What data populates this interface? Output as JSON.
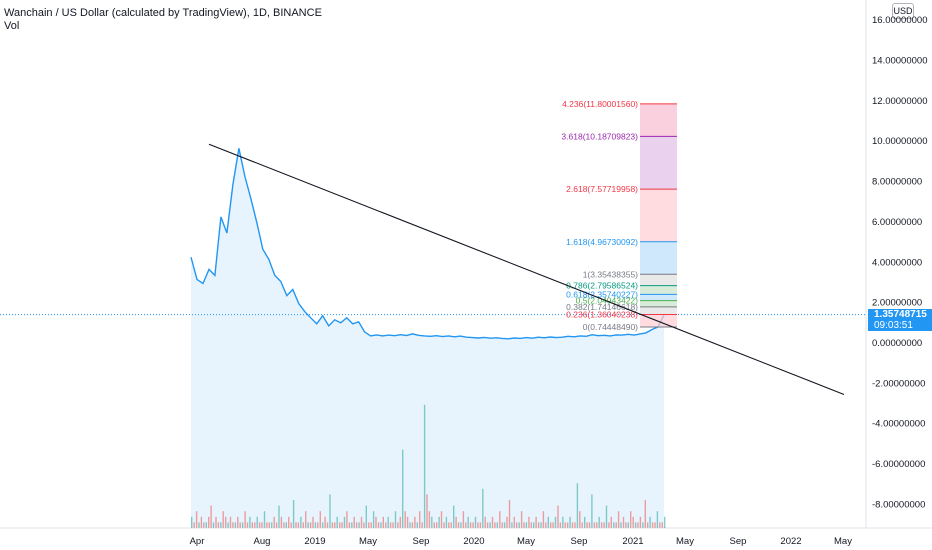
{
  "header": {
    "title": "Wanchain / US Dollar (calculated by TradingView), 1D, BINANCE",
    "vol_label": "Vol"
  },
  "currency_badge": "USD",
  "price_tag": {
    "price": "1.35748715",
    "countdown": "09:03:51"
  },
  "colors": {
    "line": "#2196f3",
    "area_fill": "#e3f2fd",
    "trendline": "#131722",
    "vol_up": "#26a69a",
    "vol_down": "#ef5350"
  },
  "chart_data": {
    "type": "line",
    "ylim": [
      -9.0,
      16.5
    ],
    "yticks": [
      "16.00000000",
      "14.00000000",
      "12.00000000",
      "10.00000000",
      "8.00000000",
      "6.00000000",
      "4.00000000",
      "2.00000000",
      "0.00000000",
      "-2.00000000",
      "-4.00000000",
      "-6.00000000",
      "-8.00000000"
    ],
    "ytick_values": [
      16,
      14,
      12,
      10,
      8,
      6,
      4,
      2,
      0,
      -2,
      -4,
      -6,
      -8
    ],
    "xticks": [
      "Apr",
      "Aug",
      "2019",
      "May",
      "Sep",
      "2020",
      "May",
      "Sep",
      "2021",
      "May",
      "Sep",
      "2022",
      "May"
    ],
    "series": [
      {
        "values": [
          4.2,
          3.1,
          2.9,
          3.6,
          3.3,
          6.2,
          5.4,
          7.8,
          9.6,
          8.2,
          7.1,
          5.9,
          4.6,
          4.1,
          3.3,
          3.0,
          2.3,
          2.6,
          1.9,
          1.5,
          1.2,
          0.9,
          1.3,
          0.8,
          1.1,
          0.95,
          1.2,
          0.9,
          1.0,
          0.5,
          0.3,
          0.35,
          0.3,
          0.34,
          0.31,
          0.36,
          0.32,
          0.4,
          0.33,
          0.3,
          0.28,
          0.31,
          0.27,
          0.3,
          0.26,
          0.29,
          0.24,
          0.22,
          0.2,
          0.23,
          0.19,
          0.21,
          0.18,
          0.16,
          0.2,
          0.18,
          0.22,
          0.19,
          0.24,
          0.21,
          0.25,
          0.22,
          0.24,
          0.28,
          0.26,
          0.3,
          0.28,
          0.36,
          0.31,
          0.33,
          0.3,
          0.35,
          0.34,
          0.38,
          0.34,
          0.4,
          0.45,
          0.62,
          0.75,
          1.35
        ]
      }
    ],
    "trendline": {
      "start": [
        0.0,
        9.8
      ],
      "end": [
        1.0,
        -2.6
      ]
    },
    "fibonacci": [
      {
        "level": "4.236(11.80001560)",
        "value": 11.8000156,
        "color": "#f23645"
      },
      {
        "level": "3.618(10.18709823)",
        "value": 10.18709823,
        "color": "#9c27b0"
      },
      {
        "level": "2.618(7.57719958)",
        "value": 7.57719958,
        "color": "#f23645"
      },
      {
        "level": "1.618(4.96730092)",
        "value": 4.96730092,
        "color": "#2196f3"
      },
      {
        "level": "1(3.35438355)",
        "value": 3.35438355,
        "color": "#787b86"
      },
      {
        "level": "0.786(2.79586524)",
        "value": 2.79586524,
        "color": "#089981"
      },
      {
        "level": "0.618(2.35740227)",
        "value": 2.35740227,
        "color": "#2196f3"
      },
      {
        "level": "0.5(2.04943422)",
        "value": 2.04943422,
        "color": "#4caf50"
      },
      {
        "level": "0.382(1.74146618)",
        "value": 1.74146618,
        "color": "#787b86"
      },
      {
        "level": "0.236(1.36040238)",
        "value": 1.36040238,
        "color": "#f23645"
      },
      {
        "level": "0(0.74448490)",
        "value": 0.7444849,
        "color": "#787b86"
      }
    ],
    "volume": [
      2,
      1,
      3,
      1,
      2,
      1,
      1,
      2,
      4,
      1,
      2,
      1,
      1,
      3,
      2,
      1,
      2,
      1,
      1,
      2,
      1,
      1,
      3,
      1,
      2,
      1,
      1,
      2,
      1,
      1,
      3,
      1,
      1,
      1,
      2,
      1,
      4,
      2,
      1,
      1,
      2,
      1,
      5,
      1,
      1,
      2,
      1,
      3,
      1,
      1,
      2,
      1,
      1,
      3,
      1,
      2,
      1,
      6,
      1,
      1,
      2,
      1,
      1,
      2,
      3,
      1,
      1,
      2,
      1,
      1,
      2,
      1,
      4,
      1,
      1,
      3,
      2,
      1,
      1,
      2,
      1,
      2,
      1,
      1,
      3,
      1,
      2,
      14,
      3,
      2,
      1,
      1,
      2,
      1,
      3,
      1,
      22,
      6,
      3,
      2,
      1,
      1,
      2,
      3,
      1,
      2,
      1,
      1,
      4,
      2,
      1,
      1,
      3,
      1,
      2,
      1,
      1,
      2,
      1,
      1,
      7,
      2,
      1,
      1,
      2,
      1,
      1,
      3,
      1,
      1,
      2,
      5,
      1,
      2,
      1,
      1,
      3,
      1,
      1,
      2,
      1,
      1,
      2,
      1,
      1,
      3,
      1,
      2,
      1,
      1,
      2,
      4,
      1,
      2,
      1,
      1,
      2,
      1,
      1,
      8,
      3,
      1,
      2,
      1,
      1,
      6,
      1,
      1,
      2,
      1,
      1,
      4,
      1,
      2,
      1,
      1,
      3,
      1,
      2,
      1,
      1,
      3,
      2,
      1,
      1,
      2,
      1,
      5,
      1,
      2,
      1,
      1,
      3,
      1,
      1,
      2
    ]
  }
}
